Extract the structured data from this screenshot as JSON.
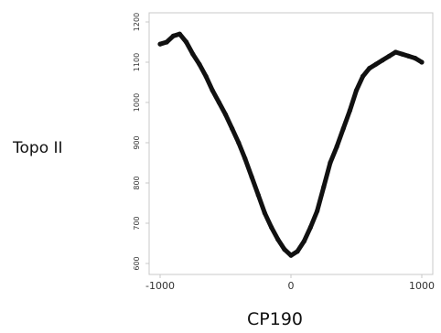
{
  "chart_data": {
    "type": "line",
    "title": "",
    "xlabel": "CP190",
    "ylabel": "Topo II",
    "xlim": [
      -1000,
      1000
    ],
    "ylim": [
      600,
      1200
    ],
    "x_ticks": [
      -1000,
      0,
      1000
    ],
    "y_ticks": [
      600,
      700,
      800,
      900,
      1000,
      1100,
      1200
    ],
    "grid": false,
    "legend": "none",
    "colors": {
      "line": "#111111",
      "frame": "#c8c8c8",
      "tick_text": "#333333"
    },
    "series": [
      {
        "x": [
          -1000,
          -950,
          -900,
          -850,
          -800,
          -750,
          -700,
          -650,
          -600,
          -550,
          -500,
          -450,
          -400,
          -350,
          -300,
          -250,
          -200,
          -150,
          -100,
          -50,
          0,
          50,
          100,
          150,
          200,
          250,
          300,
          350,
          400,
          450,
          500,
          550,
          600,
          650,
          700,
          750,
          800,
          850,
          900,
          950,
          1000
        ],
        "y": [
          1145,
          1150,
          1165,
          1170,
          1150,
          1120,
          1095,
          1065,
          1030,
          1000,
          970,
          935,
          900,
          860,
          815,
          770,
          725,
          690,
          660,
          635,
          620,
          630,
          655,
          690,
          730,
          790,
          850,
          890,
          935,
          980,
          1030,
          1065,
          1085,
          1095,
          1105,
          1115,
          1125,
          1120,
          1115,
          1110,
          1100
        ]
      }
    ]
  }
}
